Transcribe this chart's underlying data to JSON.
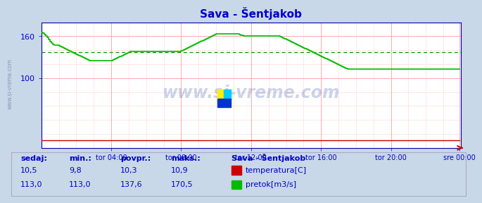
{
  "title": "Sava - Šentjakob",
  "fig_bg_color": "#c8d8e8",
  "plot_bg_color": "#ffffff",
  "grid_color_major": "#ffaaaa",
  "grid_color_minor": "#ffdddd",
  "line_color_flow": "#00bb00",
  "line_color_temp": "#cc0000",
  "avg_line_color": "#009900",
  "x_tick_labels": [
    "tor 04:00",
    "tor 08:00",
    "tor 12:00",
    "tor 16:00",
    "tor 20:00",
    "sre 00:00"
  ],
  "x_tick_positions": [
    48,
    96,
    144,
    192,
    240,
    287
  ],
  "y_ticks": [
    100,
    160
  ],
  "ylim": [
    0,
    180
  ],
  "xlim": [
    0,
    288
  ],
  "watermark": "www.si-vreme.com",
  "ylabel_side": "www.si-vreme.com",
  "legend_title": "Sava - Šentjakob",
  "legend_items": [
    "temperatura[C]",
    "pretok[m3/s]"
  ],
  "legend_colors": [
    "#cc0000",
    "#00bb00"
  ],
  "stats_headers": [
    "sedaj:",
    "min.:",
    "povpr.:",
    "maks.:"
  ],
  "stats_temp": [
    "10,5",
    "9,8",
    "10,3",
    "10,9"
  ],
  "stats_flow": [
    "113,0",
    "113,0",
    "137,6",
    "170,5"
  ],
  "avg_flow": 137.6,
  "flow_data": [
    165,
    164,
    162,
    160,
    158,
    155,
    152,
    150,
    148,
    147,
    147,
    147,
    146,
    145,
    144,
    143,
    142,
    141,
    140,
    139,
    138,
    137,
    136,
    135,
    134,
    133,
    132,
    131,
    130,
    129,
    128,
    127,
    126,
    125,
    125,
    125,
    125,
    125,
    125,
    125,
    125,
    125,
    125,
    125,
    125,
    125,
    125,
    125,
    125,
    126,
    127,
    128,
    129,
    130,
    131,
    132,
    133,
    134,
    135,
    136,
    137,
    138,
    138,
    138,
    138,
    138,
    138,
    138,
    138,
    138,
    138,
    138,
    138,
    138,
    138,
    138,
    138,
    138,
    138,
    138,
    138,
    138,
    138,
    138,
    138,
    138,
    138,
    138,
    138,
    138,
    138,
    138,
    138,
    138,
    138,
    138,
    139,
    140,
    141,
    142,
    143,
    144,
    145,
    146,
    147,
    148,
    149,
    150,
    151,
    152,
    153,
    154,
    155,
    156,
    157,
    158,
    159,
    160,
    161,
    162,
    163,
    163,
    163,
    163,
    163,
    163,
    163,
    163,
    163,
    163,
    163,
    163,
    163,
    163,
    163,
    163,
    162,
    161,
    161,
    160,
    160,
    160,
    160,
    160,
    160,
    160,
    160,
    160,
    160,
    160,
    160,
    160,
    160,
    160,
    160,
    160,
    160,
    160,
    160,
    160,
    160,
    160,
    160,
    160,
    159,
    158,
    157,
    156,
    155,
    154,
    153,
    152,
    151,
    150,
    149,
    148,
    147,
    146,
    145,
    144,
    143,
    142,
    141,
    140,
    139,
    138,
    137,
    136,
    135,
    134,
    133,
    132,
    131,
    130,
    129,
    128,
    127,
    126,
    125,
    124,
    123,
    122,
    121,
    120,
    119,
    118,
    117,
    116,
    115,
    114,
    113,
    113,
    113,
    113,
    113,
    113,
    113,
    113,
    113,
    113,
    113,
    113,
    113,
    113,
    113,
    113,
    113,
    113,
    113,
    113,
    113,
    113,
    113,
    113,
    113,
    113,
    113,
    113,
    113,
    113,
    113,
    113,
    113,
    113,
    113,
    113,
    113,
    113,
    113,
    113,
    113,
    113,
    113,
    113,
    113,
    113,
    113,
    113,
    113,
    113,
    113,
    113,
    113,
    113,
    113,
    113,
    113,
    113,
    113,
    113,
    113,
    113,
    113,
    113,
    113,
    113,
    113,
    113,
    113,
    113,
    113,
    113,
    113,
    113,
    113,
    113,
    113,
    113
  ]
}
